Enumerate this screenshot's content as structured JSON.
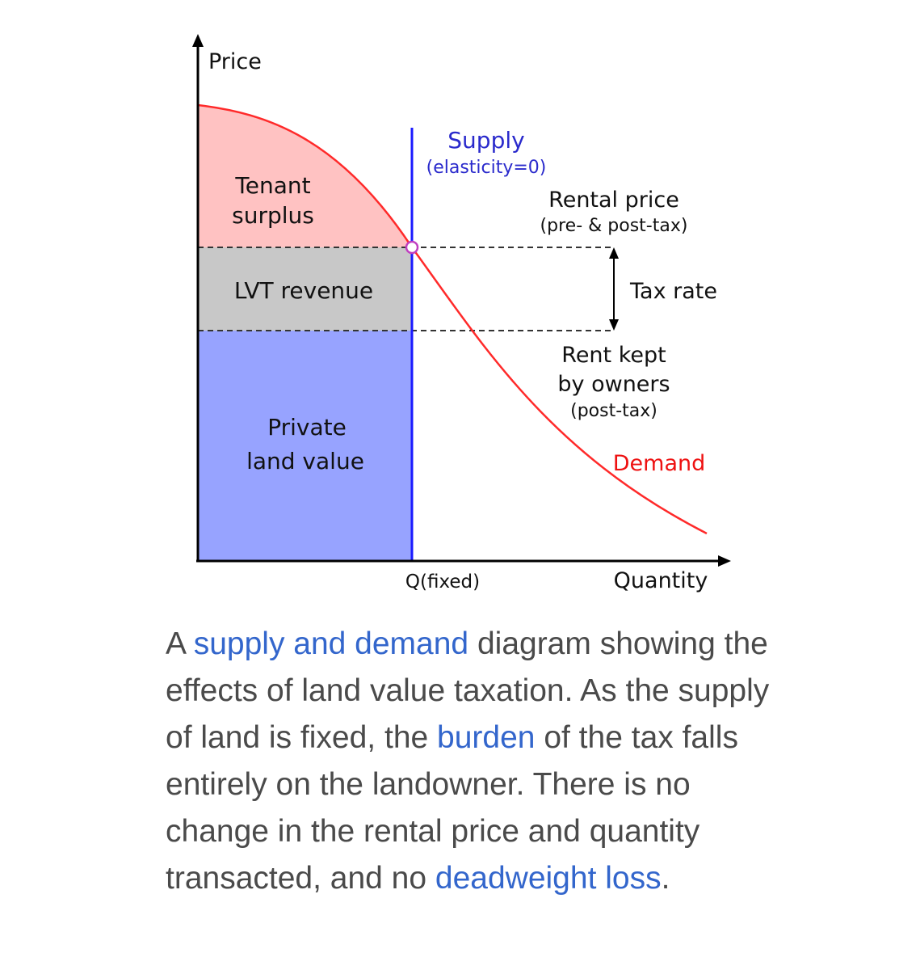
{
  "diagram": {
    "y_axis_label": "Price",
    "x_axis_label": "Quantity",
    "q_label": "Q(fixed)",
    "supply_label": "Supply",
    "supply_sublabel": "(elasticity=0)",
    "rental_price_label": "Rental price",
    "rental_price_sublabel": "(pre- & post-tax)",
    "tax_rate_label": "Tax rate",
    "rent_kept_line1": "Rent kept",
    "rent_kept_line2": "by owners",
    "rent_kept_sublabel": "(post-tax)",
    "demand_label": "Demand",
    "tenant_surplus_line1": "Tenant",
    "tenant_surplus_line2": "surplus",
    "lvt_revenue_label": "LVT revenue",
    "private_land_line1": "Private",
    "private_land_line2": "land value",
    "colors": {
      "supply": "#1a1aff",
      "demand": "#ff2a2a",
      "tenant_surplus_fill": "#ffc2c2",
      "lvt_fill": "#c8c8c8",
      "private_land_fill": "#97a3ff",
      "axis": "#000000"
    }
  },
  "caption": {
    "t1": "A ",
    "link1": "supply and demand",
    "t2": " diagram showing the effects of land value taxation. As the supply of land is fixed, the ",
    "link2": "burden",
    "t3": " of the tax falls entirely on the landowner. There is no change in the rental price and quantity transacted, and no ",
    "link3": "deadweight loss",
    "t4": "."
  }
}
